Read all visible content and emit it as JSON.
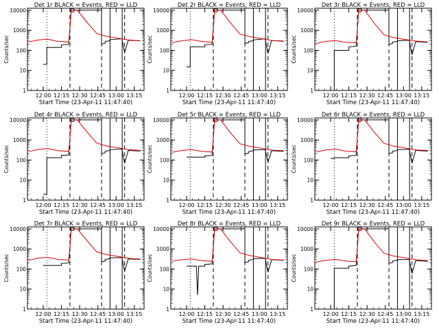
{
  "colors": {
    "events": "#000000",
    "lld": "#e00000",
    "background": "#ffffff"
  },
  "shared": {
    "xlabel": "Start Time (23-Apr-11 11:47:40)",
    "ylabel": "Counts/sec",
    "x_ticks": [
      "12:00",
      "12:15",
      "12:30",
      "12:45",
      "13:00",
      "13:15"
    ],
    "y_ticks": [
      "1",
      "10",
      "100",
      "1000",
      "10000"
    ]
  },
  "chart_data": [
    {
      "type": "line",
      "title": "Det 1r BLACK = Events, RED = LLD",
      "xlabel": "Start Time (23-Apr-11 11:47:40)",
      "ylabel": "Counts/sec",
      "y_scale": "log",
      "ylim": [
        1,
        10000
      ],
      "x_ticks": [
        "12:00",
        "12:15",
        "12:30",
        "12:45",
        "13:00",
        "13:15"
      ],
      "series": [
        {
          "color": "#000000",
          "x": [
            "12:00",
            "12:03",
            "12:03",
            "12:15",
            "12:15",
            "12:21",
            "12:23",
            "12:23",
            "12:48",
            "12:48",
            "12:51",
            "12:51",
            "12:55",
            "12:55",
            "13:05",
            "13:05",
            "13:07",
            "13:10",
            "13:20"
          ],
          "y": [
            20,
            20,
            140,
            140,
            190,
            200,
            10000,
            10000,
            10000,
            200,
            230,
            280,
            300,
            340,
            380,
            300,
            80,
            320,
            300
          ]
        },
        {
          "color": "#e00000",
          "x": [
            "11:48",
            "11:56",
            "12:04",
            "12:12",
            "12:21",
            "12:22",
            "12:23",
            "12:28",
            "12:36",
            "12:44",
            "12:52",
            "13:00",
            "13:10",
            "13:20"
          ],
          "y": [
            260,
            330,
            360,
            280,
            260,
            1200,
            10000,
            10000,
            2500,
            700,
            500,
            420,
            330,
            300
          ]
        }
      ]
    },
    {
      "type": "line",
      "title": "Det 2r BLACK = Events, RED = LLD",
      "xlabel": "Start Time (23-Apr-11 11:47:40)",
      "ylabel": "Counts/sec",
      "y_scale": "log",
      "ylim": [
        1,
        10000
      ],
      "x_ticks": [
        "12:00",
        "12:15",
        "12:30",
        "12:45",
        "13:00",
        "13:15"
      ],
      "series": [
        {
          "color": "#000000",
          "x": [
            "12:00",
            "12:03",
            "12:03",
            "12:15",
            "12:15",
            "12:21",
            "12:23",
            "12:23",
            "12:48",
            "12:48",
            "12:51",
            "12:51",
            "12:55",
            "12:55",
            "13:05",
            "13:05",
            "13:07",
            "13:10",
            "13:20"
          ],
          "y": [
            15,
            15,
            150,
            150,
            190,
            200,
            10000,
            10000,
            10000,
            220,
            240,
            280,
            300,
            330,
            380,
            300,
            70,
            310,
            290
          ]
        },
        {
          "color": "#e00000",
          "x": [
            "11:48",
            "11:56",
            "12:04",
            "12:12",
            "12:21",
            "12:22",
            "12:23",
            "12:28",
            "12:36",
            "12:44",
            "12:52",
            "13:00",
            "13:10",
            "13:20"
          ],
          "y": [
            240,
            300,
            340,
            280,
            250,
            1100,
            10000,
            10000,
            2400,
            650,
            480,
            400,
            310,
            280
          ]
        }
      ]
    },
    {
      "type": "line",
      "title": "Det 3r BLACK = Events, RED = LLD",
      "xlabel": "Start Time (23-Apr-11 11:47:40)",
      "ylabel": "Counts/sec",
      "y_scale": "log",
      "ylim": [
        1,
        10000
      ],
      "x_ticks": [
        "12:00",
        "12:15",
        "12:30",
        "12:45",
        "13:00",
        "13:15"
      ],
      "series": [
        {
          "color": "#000000",
          "x": [
            "12:00",
            "12:03",
            "12:03",
            "12:15",
            "12:15",
            "12:21",
            "12:23",
            "12:23",
            "12:48",
            "12:48",
            "12:51",
            "12:51",
            "12:55",
            "12:55",
            "13:05",
            "13:05",
            "13:07",
            "13:10",
            "13:20"
          ],
          "y": [
            1,
            1,
            100,
            100,
            150,
            160,
            10000,
            10000,
            10000,
            200,
            220,
            260,
            280,
            300,
            320,
            260,
            60,
            270,
            250
          ]
        },
        {
          "color": "#e00000",
          "x": [
            "11:48",
            "11:56",
            "12:04",
            "12:12",
            "12:21",
            "12:22",
            "12:23",
            "12:28",
            "12:36",
            "12:44",
            "12:52",
            "13:00",
            "13:10",
            "13:20"
          ],
          "y": [
            220,
            280,
            310,
            250,
            240,
            1000,
            10000,
            10000,
            2200,
            600,
            430,
            360,
            290,
            260
          ]
        }
      ]
    },
    {
      "type": "line",
      "title": "Det 4r BLACK = Events, RED = LLD",
      "xlabel": "Start Time (23-Apr-11 11:47:40)",
      "ylabel": "Counts/sec",
      "y_scale": "log",
      "ylim": [
        1,
        10000
      ],
      "x_ticks": [
        "12:00",
        "12:15",
        "12:30",
        "12:45",
        "13:00",
        "13:15"
      ],
      "series": [
        {
          "color": "#000000",
          "x": [
            "12:00",
            "12:03",
            "12:03",
            "12:15",
            "12:15",
            "12:21",
            "12:23",
            "12:23",
            "12:48",
            "12:48",
            "12:51",
            "12:51",
            "12:55",
            "12:55",
            "13:05",
            "13:05",
            "13:07",
            "13:10",
            "13:20"
          ],
          "y": [
            2,
            2,
            130,
            130,
            170,
            180,
            10000,
            10000,
            10000,
            210,
            230,
            270,
            300,
            330,
            350,
            290,
            70,
            300,
            280
          ]
        },
        {
          "color": "#e00000",
          "x": [
            "11:48",
            "11:56",
            "12:04",
            "12:12",
            "12:21",
            "12:22",
            "12:23",
            "12:28",
            "12:36",
            "12:44",
            "12:52",
            "13:00",
            "13:10",
            "13:20"
          ],
          "y": [
            260,
            340,
            370,
            290,
            270,
            1200,
            10000,
            10000,
            2500,
            700,
            500,
            420,
            330,
            300
          ]
        }
      ]
    },
    {
      "type": "line",
      "title": "Det 5r BLACK = Events, RED = LLD",
      "xlabel": "Start Time (23-Apr-11 11:47:40)",
      "ylabel": "Counts/sec",
      "y_scale": "log",
      "ylim": [
        1,
        10000
      ],
      "x_ticks": [
        "12:00",
        "12:15",
        "12:30",
        "12:45",
        "13:00",
        "13:15"
      ],
      "series": [
        {
          "color": "#000000",
          "x": [
            "12:00",
            "12:03",
            "12:03",
            "12:15",
            "12:15",
            "12:21",
            "12:23",
            "12:23",
            "12:48",
            "12:48",
            "12:51",
            "12:51",
            "12:55",
            "12:55",
            "13:05",
            "13:05",
            "13:07",
            "13:10",
            "13:20"
          ],
          "y": [
            140,
            140,
            140,
            140,
            160,
            170,
            10000,
            10000,
            10000,
            200,
            220,
            260,
            290,
            320,
            330,
            280,
            80,
            290,
            270
          ]
        },
        {
          "color": "#e00000",
          "x": [
            "11:48",
            "11:56",
            "12:04",
            "12:12",
            "12:21",
            "12:22",
            "12:23",
            "12:28",
            "12:36",
            "12:44",
            "12:52",
            "13:00",
            "13:10",
            "13:20"
          ],
          "y": [
            240,
            300,
            330,
            270,
            250,
            1100,
            10000,
            10000,
            2300,
            650,
            480,
            400,
            310,
            290
          ]
        }
      ]
    },
    {
      "type": "line",
      "title": "Det 6r BLACK = Events, RED = LLD",
      "xlabel": "Start Time (23-Apr-11 11:47:40)",
      "ylabel": "Counts/sec",
      "y_scale": "log",
      "ylim": [
        1,
        10000
      ],
      "x_ticks": [
        "12:00",
        "12:15",
        "12:30",
        "12:45",
        "13:00",
        "13:15"
      ],
      "series": [
        {
          "color": "#000000",
          "x": [
            "12:00",
            "12:03",
            "12:03",
            "12:15",
            "12:15",
            "12:21",
            "12:23",
            "12:23",
            "12:48",
            "12:48",
            "12:51",
            "12:51",
            "12:55",
            "12:55",
            "13:05",
            "13:05",
            "13:07",
            "13:10",
            "13:20"
          ],
          "y": [
            120,
            120,
            130,
            130,
            160,
            170,
            10000,
            10000,
            10000,
            210,
            230,
            270,
            300,
            330,
            340,
            280,
            70,
            300,
            280
          ]
        },
        {
          "color": "#e00000",
          "x": [
            "11:48",
            "11:56",
            "12:04",
            "12:12",
            "12:21",
            "12:22",
            "12:23",
            "12:28",
            "12:36",
            "12:44",
            "12:52",
            "13:00",
            "13:10",
            "13:20"
          ],
          "y": [
            250,
            320,
            350,
            280,
            260,
            1150,
            10000,
            10000,
            2400,
            680,
            490,
            410,
            320,
            300
          ]
        }
      ]
    },
    {
      "type": "line",
      "title": "Det 7r BLACK = Events, RED = LLD",
      "xlabel": "Start Time (23-Apr-11 11:47:40)",
      "ylabel": "Counts/sec",
      "y_scale": "log",
      "ylim": [
        1,
        10000
      ],
      "x_ticks": [
        "12:00",
        "12:15",
        "12:30",
        "12:45",
        "13:00",
        "13:15"
      ],
      "series": [
        {
          "color": "#000000",
          "x": [
            "12:00",
            "12:03",
            "12:03",
            "12:15",
            "12:15",
            "12:21",
            "12:23",
            "12:23",
            "12:48",
            "12:48",
            "12:51",
            "12:51",
            "12:55",
            "12:55",
            "13:05",
            "13:05",
            "13:07",
            "13:10",
            "13:20"
          ],
          "y": [
            150,
            150,
            150,
            150,
            190,
            200,
            10000,
            10000,
            10000,
            230,
            250,
            300,
            330,
            360,
            370,
            310,
            80,
            320,
            300
          ]
        },
        {
          "color": "#e00000",
          "x": [
            "11:48",
            "11:56",
            "12:04",
            "12:12",
            "12:21",
            "12:22",
            "12:23",
            "12:28",
            "12:36",
            "12:44",
            "12:52",
            "13:00",
            "13:10",
            "13:20"
          ],
          "y": [
            270,
            350,
            380,
            300,
            280,
            1200,
            10000,
            10000,
            2600,
            720,
            520,
            440,
            340,
            310
          ]
        }
      ]
    },
    {
      "type": "line",
      "title": "Det 8r BLACK = Events, RED = LLD",
      "xlabel": "Start Time (23-Apr-11 11:47:40)",
      "ylabel": "Counts/sec",
      "y_scale": "log",
      "ylim": [
        1,
        10000
      ],
      "x_ticks": [
        "12:00",
        "12:15",
        "12:30",
        "12:45",
        "13:00",
        "13:15"
      ],
      "series": [
        {
          "color": "#000000",
          "x": [
            "12:00",
            "12:03",
            "12:03",
            "12:08",
            "12:09",
            "12:10",
            "12:15",
            "12:15",
            "12:21",
            "12:23",
            "12:23",
            "12:48",
            "12:48",
            "12:51",
            "12:51",
            "12:55",
            "12:55",
            "13:05",
            "13:05",
            "13:07",
            "13:10",
            "13:20"
          ],
          "y": [
            140,
            140,
            140,
            140,
            5,
            140,
            140,
            170,
            180,
            10000,
            10000,
            10000,
            210,
            230,
            270,
            300,
            330,
            340,
            280,
            70,
            290,
            270
          ]
        },
        {
          "color": "#e00000",
          "x": [
            "11:48",
            "11:56",
            "12:04",
            "12:12",
            "12:21",
            "12:22",
            "12:23",
            "12:28",
            "12:36",
            "12:44",
            "12:52",
            "13:00",
            "13:10",
            "13:20"
          ],
          "y": [
            240,
            290,
            320,
            260,
            240,
            1050,
            10000,
            10000,
            2300,
            640,
            470,
            390,
            300,
            280
          ]
        }
      ]
    },
    {
      "type": "line",
      "title": "Det 9r BLACK = Events, RED = LLD",
      "xlabel": "Start Time (23-Apr-11 11:47:40)",
      "ylabel": "Counts/sec",
      "y_scale": "log",
      "ylim": [
        1,
        10000
      ],
      "x_ticks": [
        "12:00",
        "12:15",
        "12:30",
        "12:45",
        "13:00",
        "13:15"
      ],
      "series": [
        {
          "color": "#000000",
          "x": [
            "12:00",
            "12:03",
            "12:03",
            "12:15",
            "12:15",
            "12:21",
            "12:23",
            "12:23",
            "12:48",
            "12:48",
            "12:51",
            "12:51",
            "12:55",
            "12:55",
            "13:05",
            "13:05",
            "13:07",
            "13:10",
            "13:20"
          ],
          "y": [
            1,
            1,
            110,
            110,
            140,
            150,
            10000,
            10000,
            10000,
            190,
            210,
            250,
            270,
            290,
            300,
            250,
            60,
            260,
            240
          ]
        },
        {
          "color": "#e00000",
          "x": [
            "11:48",
            "11:56",
            "12:04",
            "12:12",
            "12:21",
            "12:22",
            "12:23",
            "12:28",
            "12:36",
            "12:44",
            "12:52",
            "13:00",
            "13:10",
            "13:20"
          ],
          "y": [
            220,
            270,
            300,
            250,
            230,
            1000,
            10000,
            10000,
            2200,
            600,
            440,
            370,
            290,
            260
          ]
        }
      ]
    }
  ]
}
